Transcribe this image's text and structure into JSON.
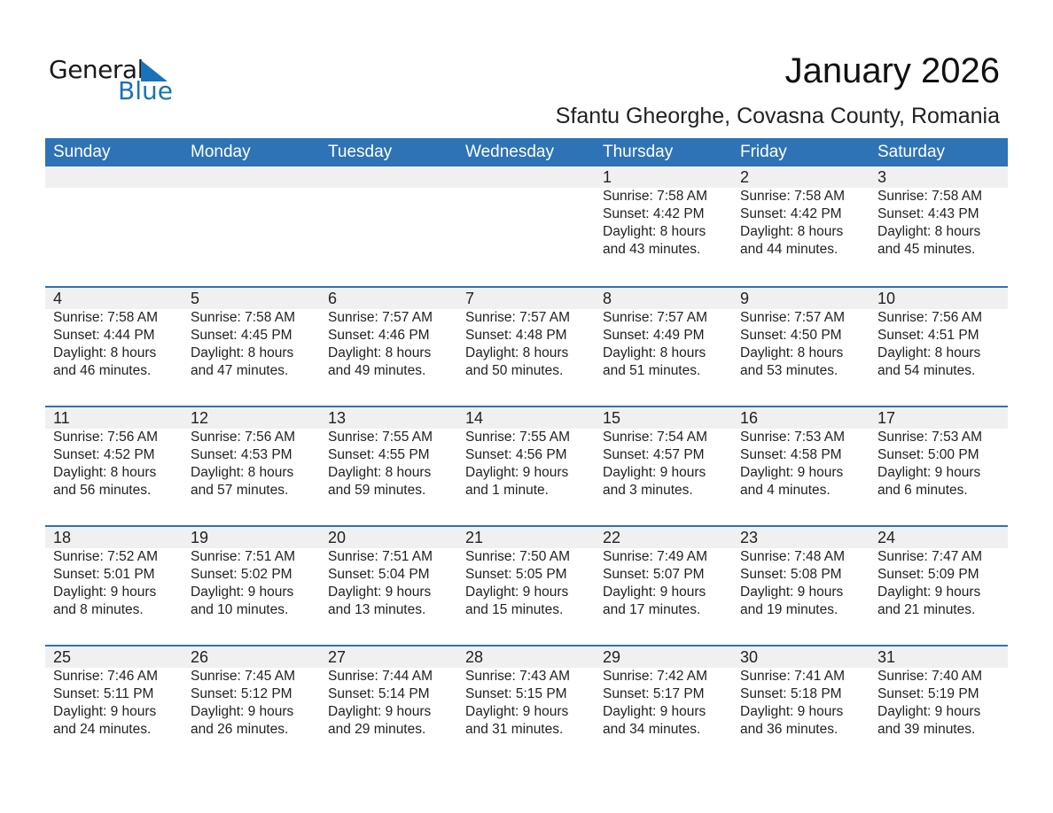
{
  "logo": {
    "text1": "General",
    "text2": "Blue",
    "color": "#1a72bb"
  },
  "title": "January 2026",
  "subtitle": "Sfantu Gheorghe, Covasna County, Romania",
  "header_color": "#2e73b5",
  "days": [
    "Sunday",
    "Monday",
    "Tuesday",
    "Wednesday",
    "Thursday",
    "Friday",
    "Saturday"
  ],
  "weeks": [
    [
      null,
      null,
      null,
      null,
      {
        "date": "1",
        "sunrise": "Sunrise: 7:58 AM",
        "sunset": "Sunset: 4:42 PM",
        "daylight1": "Daylight: 8 hours",
        "daylight2": "and 43 minutes."
      },
      {
        "date": "2",
        "sunrise": "Sunrise: 7:58 AM",
        "sunset": "Sunset: 4:42 PM",
        "daylight1": "Daylight: 8 hours",
        "daylight2": "and 44 minutes."
      },
      {
        "date": "3",
        "sunrise": "Sunrise: 7:58 AM",
        "sunset": "Sunset: 4:43 PM",
        "daylight1": "Daylight: 8 hours",
        "daylight2": "and 45 minutes."
      }
    ],
    [
      {
        "date": "4",
        "sunrise": "Sunrise: 7:58 AM",
        "sunset": "Sunset: 4:44 PM",
        "daylight1": "Daylight: 8 hours",
        "daylight2": "and 46 minutes."
      },
      {
        "date": "5",
        "sunrise": "Sunrise: 7:58 AM",
        "sunset": "Sunset: 4:45 PM",
        "daylight1": "Daylight: 8 hours",
        "daylight2": "and 47 minutes."
      },
      {
        "date": "6",
        "sunrise": "Sunrise: 7:57 AM",
        "sunset": "Sunset: 4:46 PM",
        "daylight1": "Daylight: 8 hours",
        "daylight2": "and 49 minutes."
      },
      {
        "date": "7",
        "sunrise": "Sunrise: 7:57 AM",
        "sunset": "Sunset: 4:48 PM",
        "daylight1": "Daylight: 8 hours",
        "daylight2": "and 50 minutes."
      },
      {
        "date": "8",
        "sunrise": "Sunrise: 7:57 AM",
        "sunset": "Sunset: 4:49 PM",
        "daylight1": "Daylight: 8 hours",
        "daylight2": "and 51 minutes."
      },
      {
        "date": "9",
        "sunrise": "Sunrise: 7:57 AM",
        "sunset": "Sunset: 4:50 PM",
        "daylight1": "Daylight: 8 hours",
        "daylight2": "and 53 minutes."
      },
      {
        "date": "10",
        "sunrise": "Sunrise: 7:56 AM",
        "sunset": "Sunset: 4:51 PM",
        "daylight1": "Daylight: 8 hours",
        "daylight2": "and 54 minutes."
      }
    ],
    [
      {
        "date": "11",
        "sunrise": "Sunrise: 7:56 AM",
        "sunset": "Sunset: 4:52 PM",
        "daylight1": "Daylight: 8 hours",
        "daylight2": "and 56 minutes."
      },
      {
        "date": "12",
        "sunrise": "Sunrise: 7:56 AM",
        "sunset": "Sunset: 4:53 PM",
        "daylight1": "Daylight: 8 hours",
        "daylight2": "and 57 minutes."
      },
      {
        "date": "13",
        "sunrise": "Sunrise: 7:55 AM",
        "sunset": "Sunset: 4:55 PM",
        "daylight1": "Daylight: 8 hours",
        "daylight2": "and 59 minutes."
      },
      {
        "date": "14",
        "sunrise": "Sunrise: 7:55 AM",
        "sunset": "Sunset: 4:56 PM",
        "daylight1": "Daylight: 9 hours",
        "daylight2": "and 1 minute."
      },
      {
        "date": "15",
        "sunrise": "Sunrise: 7:54 AM",
        "sunset": "Sunset: 4:57 PM",
        "daylight1": "Daylight: 9 hours",
        "daylight2": "and 3 minutes."
      },
      {
        "date": "16",
        "sunrise": "Sunrise: 7:53 AM",
        "sunset": "Sunset: 4:58 PM",
        "daylight1": "Daylight: 9 hours",
        "daylight2": "and 4 minutes."
      },
      {
        "date": "17",
        "sunrise": "Sunrise: 7:53 AM",
        "sunset": "Sunset: 5:00 PM",
        "daylight1": "Daylight: 9 hours",
        "daylight2": "and 6 minutes."
      }
    ],
    [
      {
        "date": "18",
        "sunrise": "Sunrise: 7:52 AM",
        "sunset": "Sunset: 5:01 PM",
        "daylight1": "Daylight: 9 hours",
        "daylight2": "and 8 minutes."
      },
      {
        "date": "19",
        "sunrise": "Sunrise: 7:51 AM",
        "sunset": "Sunset: 5:02 PM",
        "daylight1": "Daylight: 9 hours",
        "daylight2": "and 10 minutes."
      },
      {
        "date": "20",
        "sunrise": "Sunrise: 7:51 AM",
        "sunset": "Sunset: 5:04 PM",
        "daylight1": "Daylight: 9 hours",
        "daylight2": "and 13 minutes."
      },
      {
        "date": "21",
        "sunrise": "Sunrise: 7:50 AM",
        "sunset": "Sunset: 5:05 PM",
        "daylight1": "Daylight: 9 hours",
        "daylight2": "and 15 minutes."
      },
      {
        "date": "22",
        "sunrise": "Sunrise: 7:49 AM",
        "sunset": "Sunset: 5:07 PM",
        "daylight1": "Daylight: 9 hours",
        "daylight2": "and 17 minutes."
      },
      {
        "date": "23",
        "sunrise": "Sunrise: 7:48 AM",
        "sunset": "Sunset: 5:08 PM",
        "daylight1": "Daylight: 9 hours",
        "daylight2": "and 19 minutes."
      },
      {
        "date": "24",
        "sunrise": "Sunrise: 7:47 AM",
        "sunset": "Sunset: 5:09 PM",
        "daylight1": "Daylight: 9 hours",
        "daylight2": "and 21 minutes."
      }
    ],
    [
      {
        "date": "25",
        "sunrise": "Sunrise: 7:46 AM",
        "sunset": "Sunset: 5:11 PM",
        "daylight1": "Daylight: 9 hours",
        "daylight2": "and 24 minutes."
      },
      {
        "date": "26",
        "sunrise": "Sunrise: 7:45 AM",
        "sunset": "Sunset: 5:12 PM",
        "daylight1": "Daylight: 9 hours",
        "daylight2": "and 26 minutes."
      },
      {
        "date": "27",
        "sunrise": "Sunrise: 7:44 AM",
        "sunset": "Sunset: 5:14 PM",
        "daylight1": "Daylight: 9 hours",
        "daylight2": "and 29 minutes."
      },
      {
        "date": "28",
        "sunrise": "Sunrise: 7:43 AM",
        "sunset": "Sunset: 5:15 PM",
        "daylight1": "Daylight: 9 hours",
        "daylight2": "and 31 minutes."
      },
      {
        "date": "29",
        "sunrise": "Sunrise: 7:42 AM",
        "sunset": "Sunset: 5:17 PM",
        "daylight1": "Daylight: 9 hours",
        "daylight2": "and 34 minutes."
      },
      {
        "date": "30",
        "sunrise": "Sunrise: 7:41 AM",
        "sunset": "Sunset: 5:18 PM",
        "daylight1": "Daylight: 9 hours",
        "daylight2": "and 36 minutes."
      },
      {
        "date": "31",
        "sunrise": "Sunrise: 7:40 AM",
        "sunset": "Sunset: 5:19 PM",
        "daylight1": "Daylight: 9 hours",
        "daylight2": "and 39 minutes."
      }
    ]
  ]
}
